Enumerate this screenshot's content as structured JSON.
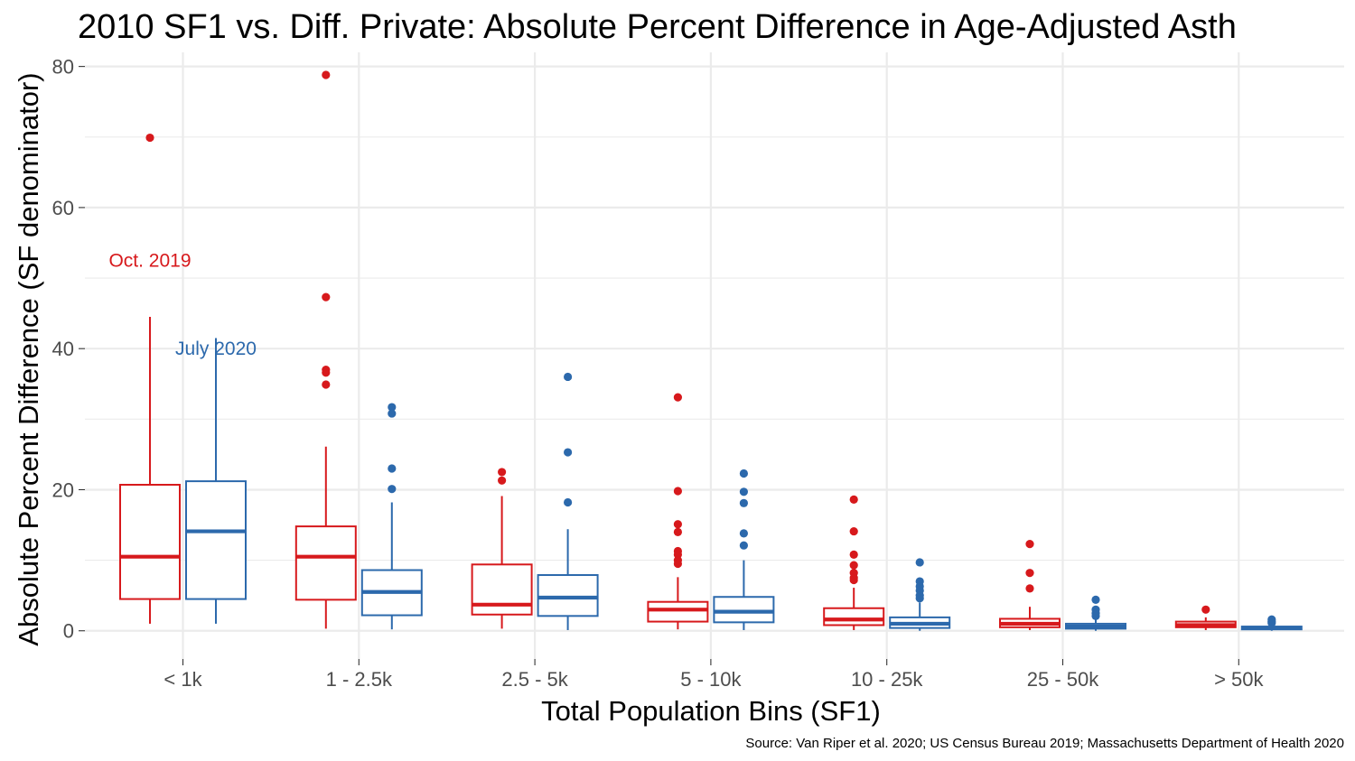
{
  "chart_data": {
    "type": "boxplot",
    "title": "2010 SF1 vs. Diff. Private: Absolute Percent Difference in Age-Adjusted Asth",
    "xlabel": "Total Population Bins (SF1)",
    "ylabel": "Absolute Percent Difference (SF denominator)",
    "caption": "Source: Van Riper et al. 2020; US Census Bureau 2019; Massachusetts Department of Health 2020",
    "categories": [
      "< 1k",
      "1 - 2.5k",
      "2.5 - 5k",
      "5 - 10k",
      "10 - 25k",
      "25 - 50k",
      "> 50k"
    ],
    "ylim": [
      -4,
      82
    ],
    "yticks": [
      0,
      20,
      40,
      60,
      80
    ],
    "grid": true,
    "legend": "none",
    "colors": {
      "Oct. 2019": "#d7191c",
      "July 2020": "#2c69ac",
      "grid": "#ebebeb",
      "tick": "#4d4d4d"
    },
    "annotations": [
      {
        "text": "Oct. 2019",
        "series": "Oct. 2019",
        "x": "< 1k",
        "y": 52.5
      },
      {
        "text": "July 2020",
        "series": "July 2020",
        "x": "< 1k",
        "y": 40
      }
    ],
    "series": [
      {
        "label": "Oct. 2019",
        "boxes": [
          {
            "category": "< 1k",
            "lower_whisker": 1.0,
            "q1": 4.5,
            "median": 10.5,
            "q3": 20.7,
            "upper_whisker": 44.5,
            "outliers": [
              69.9
            ]
          },
          {
            "category": "1 - 2.5k",
            "lower_whisker": 0.3,
            "q1": 4.4,
            "median": 10.5,
            "q3": 14.8,
            "upper_whisker": 26.1,
            "outliers": [
              78.8,
              47.3,
              37.0,
              36.6,
              34.9
            ]
          },
          {
            "category": "2.5 - 5k",
            "lower_whisker": 0.3,
            "q1": 2.3,
            "median": 3.7,
            "q3": 9.4,
            "upper_whisker": 19.1,
            "outliers": [
              22.5,
              21.3
            ]
          },
          {
            "category": "5 - 10k",
            "lower_whisker": 0.2,
            "q1": 1.3,
            "median": 3.0,
            "q3": 4.1,
            "upper_whisker": 7.6,
            "outliers": [
              33.1,
              19.8,
              15.1,
              14.0,
              11.3,
              10.8,
              10.0,
              9.5
            ]
          },
          {
            "category": "10 - 25k",
            "lower_whisker": 0.1,
            "q1": 0.8,
            "median": 1.6,
            "q3": 3.2,
            "upper_whisker": 6.1,
            "outliers": [
              18.6,
              14.1,
              10.8,
              9.3,
              8.2,
              7.5,
              7.2
            ]
          },
          {
            "category": "25 - 50k",
            "lower_whisker": 0.1,
            "q1": 0.5,
            "median": 1.0,
            "q3": 1.7,
            "upper_whisker": 3.4,
            "outliers": [
              12.3,
              8.2,
              6.0
            ]
          },
          {
            "category": "> 50k",
            "lower_whisker": 0.1,
            "q1": 0.5,
            "median": 0.8,
            "q3": 1.3,
            "upper_whisker": 1.9,
            "outliers": [
              3.0
            ]
          }
        ]
      },
      {
        "label": "July 2020",
        "boxes": [
          {
            "category": "< 1k",
            "lower_whisker": 1.0,
            "q1": 4.5,
            "median": 14.1,
            "q3": 21.2,
            "upper_whisker": 41.5,
            "outliers": []
          },
          {
            "category": "1 - 2.5k",
            "lower_whisker": 0.2,
            "q1": 2.2,
            "median": 5.5,
            "q3": 8.6,
            "upper_whisker": 18.2,
            "outliers": [
              31.7,
              30.8,
              23.0,
              20.1
            ]
          },
          {
            "category": "2.5 - 5k",
            "lower_whisker": 0.1,
            "q1": 2.1,
            "median": 4.7,
            "q3": 7.9,
            "upper_whisker": 14.4,
            "outliers": [
              36.0,
              25.3,
              18.2
            ]
          },
          {
            "category": "5 - 10k",
            "lower_whisker": 0.1,
            "q1": 1.2,
            "median": 2.7,
            "q3": 4.8,
            "upper_whisker": 10.0,
            "outliers": [
              22.3,
              19.7,
              18.1,
              13.8,
              12.1
            ]
          },
          {
            "category": "10 - 25k",
            "lower_whisker": 0.0,
            "q1": 0.4,
            "median": 1.0,
            "q3": 1.9,
            "upper_whisker": 4.0,
            "outliers": [
              9.7,
              7.0,
              6.3,
              5.7,
              5.0,
              4.6
            ]
          },
          {
            "category": "25 - 50k",
            "lower_whisker": 0.0,
            "q1": 0.3,
            "median": 0.6,
            "q3": 1.0,
            "upper_whisker": 1.6,
            "outliers": [
              4.4,
              3.0,
              2.5,
              2.1
            ]
          },
          {
            "category": "> 50k",
            "lower_whisker": 0.0,
            "q1": 0.2,
            "median": 0.4,
            "q3": 0.6,
            "upper_whisker": 0.9,
            "outliers": [
              1.6,
              1.3,
              1.1
            ]
          }
        ]
      }
    ]
  }
}
